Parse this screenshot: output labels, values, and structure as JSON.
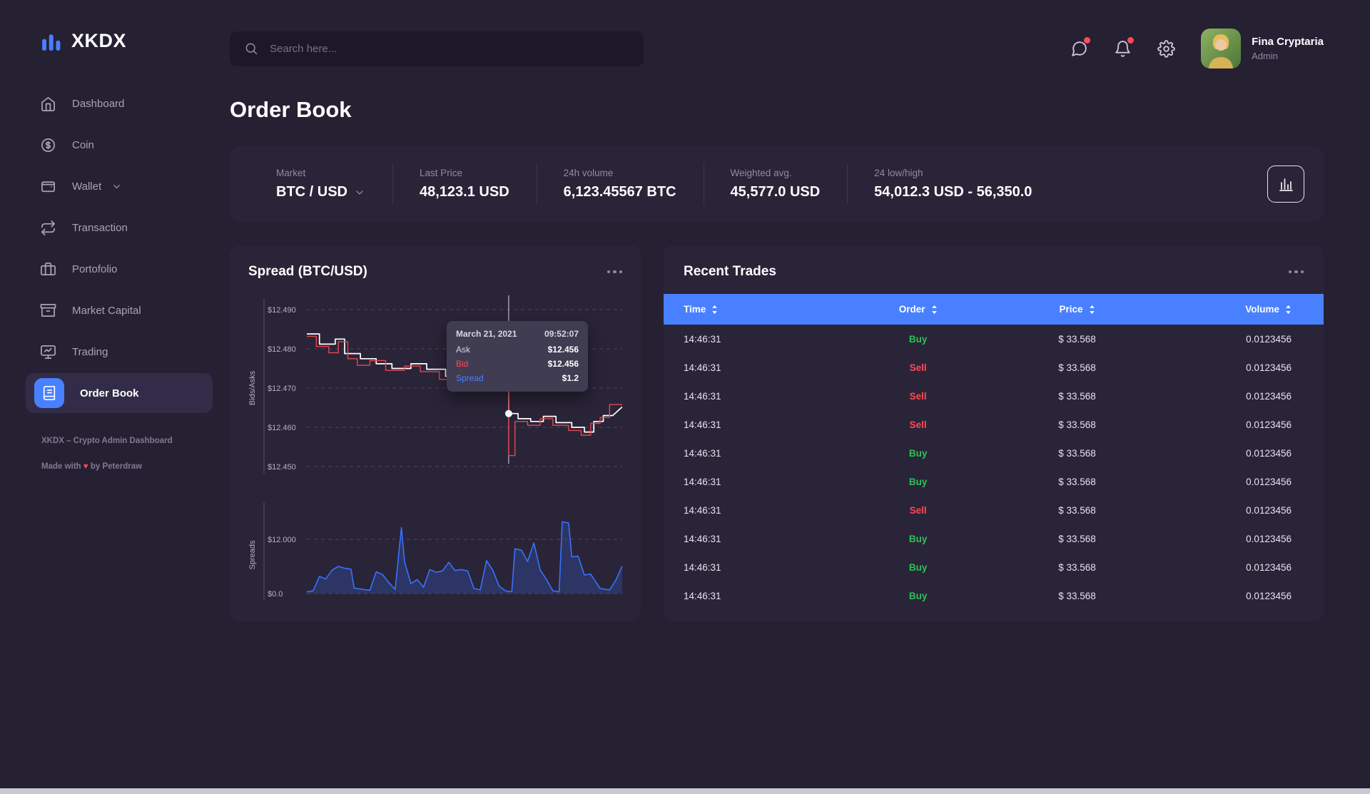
{
  "app": {
    "brand": "XKDX"
  },
  "topbar": {
    "search_placeholder": "Search here...",
    "user_name": "Fina Cryptaria",
    "user_role": "Admin"
  },
  "sidebar": {
    "items": [
      {
        "label": "Dashboard",
        "icon": "home-icon"
      },
      {
        "label": "Coin",
        "icon": "coin-icon"
      },
      {
        "label": "Wallet",
        "icon": "wallet-icon",
        "chevron": true
      },
      {
        "label": "Transaction",
        "icon": "transaction-icon"
      },
      {
        "label": "Portofolio",
        "icon": "portfolio-icon"
      },
      {
        "label": "Market Capital",
        "icon": "market-icon"
      },
      {
        "label": "Trading",
        "icon": "trading-icon"
      },
      {
        "label": "Order Book",
        "icon": "orderbook-icon",
        "active": true
      }
    ],
    "footer_title": "XKDX – Crypto Admin Dashboard",
    "credit_pre": "Made with",
    "credit_heart": "♥",
    "credit_post": "by Peterdraw"
  },
  "page": {
    "title": "Order Book"
  },
  "stats": [
    {
      "label": "Market",
      "value": "BTC / USD",
      "dropdown": true
    },
    {
      "label": "Last Price",
      "value": "48,123.1 USD"
    },
    {
      "label": "24h volume",
      "value": "6,123.45567 BTC"
    },
    {
      "label": "Weighted avg.",
      "value": "45,577.0 USD"
    },
    {
      "label": "24 low/high",
      "value": "54,012.3 USD - 56,350.0"
    }
  ],
  "spread_card": {
    "title": "Spread (BTC/USD)",
    "tooltip": {
      "date": "March 21, 2021",
      "time": "09:52:07",
      "rows": [
        {
          "label": "Ask",
          "value": "$12.456",
          "cls": "ask"
        },
        {
          "label": "Bid",
          "value": "$12.456",
          "cls": "bid"
        },
        {
          "label": "Spread",
          "value": "$1.2",
          "cls": "spread"
        }
      ]
    }
  },
  "trades_card": {
    "title": "Recent Trades",
    "columns": [
      "Time",
      "Order",
      "Price",
      "Volume"
    ],
    "rows": [
      {
        "time": "14:46:31",
        "order": "Buy",
        "price": "$ 33.568",
        "volume": "0.0123456"
      },
      {
        "time": "14:46:31",
        "order": "Sell",
        "price": "$ 33.568",
        "volume": "0.0123456"
      },
      {
        "time": "14:46:31",
        "order": "Sell",
        "price": "$ 33.568",
        "volume": "0.0123456"
      },
      {
        "time": "14:46:31",
        "order": "Sell",
        "price": "$ 33.568",
        "volume": "0.0123456"
      },
      {
        "time": "14:46:31",
        "order": "Buy",
        "price": "$ 33.568",
        "volume": "0.0123456"
      },
      {
        "time": "14:46:31",
        "order": "Buy",
        "price": "$ 33.568",
        "volume": "0.0123456"
      },
      {
        "time": "14:46:31",
        "order": "Sell",
        "price": "$ 33.568",
        "volume": "0.0123456"
      },
      {
        "time": "14:46:31",
        "order": "Buy",
        "price": "$ 33.568",
        "volume": "0.0123456"
      },
      {
        "time": "14:46:31",
        "order": "Buy",
        "price": "$ 33.568",
        "volume": "0.0123456"
      },
      {
        "time": "14:46:31",
        "order": "Buy",
        "price": "$ 33.568",
        "volume": "0.0123456"
      }
    ]
  },
  "colors": {
    "accent": "#4880FF",
    "buy": "#2BC155",
    "sell": "#FF4A55",
    "ask_line": "#FFFFFF",
    "bid_line": "#E8464F",
    "spread_line": "#3772FF",
    "notification_dot": "#FF4B55"
  },
  "chart_data": [
    {
      "type": "line",
      "title": "Spread (BTC/USD)",
      "ylabel": "Bids/Asks",
      "xlabel": "",
      "ylim": [
        12.446,
        12.494
      ],
      "grid": true,
      "legend": "none",
      "y_gridlines": [
        {
          "price": 12.49,
          "label": "$12.490"
        },
        {
          "price": 12.48,
          "label": "$12.480"
        },
        {
          "price": 12.47,
          "label": "$12.470"
        },
        {
          "price": 12.46,
          "label": "$12.460"
        },
        {
          "price": 12.45,
          "label": "$12.450"
        }
      ],
      "cursor": {
        "x": 64,
        "price": 12.4635
      },
      "series": [
        {
          "name": "Ask",
          "color": "#FFFFFF",
          "points": [
            [
              0,
              12.4838
            ],
            [
              4,
              12.4838
            ],
            [
              4,
              12.4812
            ],
            [
              9,
              12.4812
            ],
            [
              9,
              12.4825
            ],
            [
              12,
              12.4825
            ],
            [
              12,
              12.4788
            ],
            [
              17,
              12.4788
            ],
            [
              17,
              12.4775
            ],
            [
              22,
              12.4775
            ],
            [
              22,
              12.4762
            ],
            [
              27,
              12.4762
            ],
            [
              27,
              12.475
            ],
            [
              33,
              12.475
            ],
            [
              33,
              12.4762
            ],
            [
              38,
              12.4762
            ],
            [
              38,
              12.4748
            ],
            [
              44,
              12.4748
            ],
            [
              44,
              12.473
            ],
            [
              49,
              12.473
            ],
            [
              49,
              12.4718
            ],
            [
              53,
              12.4718
            ],
            [
              53,
              12.4728
            ],
            [
              57,
              12.4728
            ],
            [
              57,
              12.4712
            ],
            [
              61,
              12.4712
            ],
            [
              61,
              12.47
            ],
            [
              64,
              12.47
            ],
            [
              64,
              12.4635
            ],
            [
              67,
              12.4635
            ],
            [
              67,
              12.4622
            ],
            [
              71,
              12.4622
            ],
            [
              71,
              12.4615
            ],
            [
              75,
              12.4615
            ],
            [
              75,
              12.4628
            ],
            [
              79,
              12.4628
            ],
            [
              79,
              12.4612
            ],
            [
              84,
              12.4612
            ],
            [
              84,
              12.46
            ],
            [
              88,
              12.46
            ],
            [
              88,
              12.4588
            ],
            [
              91,
              12.4588
            ],
            [
              91,
              12.4615
            ],
            [
              94,
              12.4615
            ],
            [
              94,
              12.463
            ],
            [
              97,
              12.463
            ],
            [
              100,
              12.4652
            ]
          ]
        },
        {
          "name": "Bid",
          "color": "#E8464F",
          "points": [
            [
              0,
              12.4832
            ],
            [
              3,
              12.4832
            ],
            [
              3,
              12.4806
            ],
            [
              7,
              12.4806
            ],
            [
              7,
              12.479
            ],
            [
              10,
              12.479
            ],
            [
              10,
              12.4818
            ],
            [
              13,
              12.4818
            ],
            [
              13,
              12.4775
            ],
            [
              16,
              12.4775
            ],
            [
              16,
              12.4758
            ],
            [
              20,
              12.4758
            ],
            [
              20,
              12.477
            ],
            [
              25,
              12.477
            ],
            [
              25,
              12.4745
            ],
            [
              31,
              12.4745
            ],
            [
              31,
              12.4756
            ],
            [
              36,
              12.4756
            ],
            [
              36,
              12.4742
            ],
            [
              42,
              12.4742
            ],
            [
              42,
              12.4722
            ],
            [
              47,
              12.4722
            ],
            [
              47,
              12.4735
            ],
            [
              51,
              12.4735
            ],
            [
              51,
              12.4708
            ],
            [
              56,
              12.4708
            ],
            [
              56,
              12.4695
            ],
            [
              60,
              12.4695
            ],
            [
              60,
              12.4705
            ],
            [
              64,
              12.4705
            ],
            [
              64,
              12.4528
            ],
            [
              66,
              12.4528
            ],
            [
              66,
              12.4615
            ],
            [
              70,
              12.4615
            ],
            [
              70,
              12.4605
            ],
            [
              74,
              12.4605
            ],
            [
              74,
              12.4622
            ],
            [
              78,
              12.4622
            ],
            [
              78,
              12.4605
            ],
            [
              83,
              12.4605
            ],
            [
              83,
              12.4592
            ],
            [
              87,
              12.4592
            ],
            [
              87,
              12.458
            ],
            [
              90,
              12.458
            ],
            [
              90,
              12.461
            ],
            [
              93,
              12.461
            ],
            [
              93,
              12.4625
            ],
            [
              96,
              12.4625
            ],
            [
              96,
              12.4658
            ],
            [
              100,
              12.4658
            ]
          ]
        }
      ]
    },
    {
      "type": "area",
      "title": "Spreads",
      "ylabel": "Spreads",
      "xlabel": "",
      "ylim": [
        0,
        16
      ],
      "grid": true,
      "legend": "none",
      "y_gridlines": [
        {
          "value": 12,
          "label": "$12.000"
        },
        {
          "value": 0,
          "label": "$0.0"
        }
      ],
      "series": [
        {
          "name": "Spread",
          "color": "#3772FF",
          "fill": "rgba(55,114,255,0.22)",
          "points": [
            [
              0,
              0.4
            ],
            [
              2,
              0.6
            ],
            [
              4,
              3.8
            ],
            [
              6,
              3.2
            ],
            [
              8,
              5.2
            ],
            [
              10,
              6.0
            ],
            [
              12,
              5.6
            ],
            [
              14,
              5.4
            ],
            [
              15,
              1.2
            ],
            [
              17,
              1.0
            ],
            [
              20,
              0.7
            ],
            [
              22,
              4.8
            ],
            [
              24,
              4.2
            ],
            [
              26,
              2.4
            ],
            [
              28,
              0.9
            ],
            [
              30,
              14.6
            ],
            [
              31,
              7.0
            ],
            [
              33,
              2.2
            ],
            [
              35,
              3.1
            ],
            [
              37,
              1.4
            ],
            [
              39,
              5.3
            ],
            [
              41,
              4.7
            ],
            [
              43,
              5.0
            ],
            [
              45,
              6.9
            ],
            [
              47,
              5.1
            ],
            [
              49,
              5.3
            ],
            [
              51,
              5.0
            ],
            [
              53,
              1.1
            ],
            [
              55,
              0.8
            ],
            [
              57,
              7.3
            ],
            [
              59,
              5.1
            ],
            [
              61,
              1.6
            ],
            [
              63,
              0.6
            ],
            [
              65,
              0.4
            ],
            [
              66,
              9.9
            ],
            [
              68,
              9.6
            ],
            [
              70,
              7.1
            ],
            [
              72,
              11.2
            ],
            [
              74,
              5.2
            ],
            [
              76,
              3.1
            ],
            [
              78,
              0.6
            ],
            [
              80,
              0.4
            ],
            [
              81,
              15.9
            ],
            [
              83,
              15.6
            ],
            [
              84,
              8.1
            ],
            [
              86,
              8.3
            ],
            [
              88,
              4.1
            ],
            [
              90,
              4.3
            ],
            [
              93,
              1.1
            ],
            [
              96,
              0.8
            ],
            [
              98,
              3.0
            ],
            [
              100,
              6.1
            ]
          ]
        }
      ]
    }
  ]
}
